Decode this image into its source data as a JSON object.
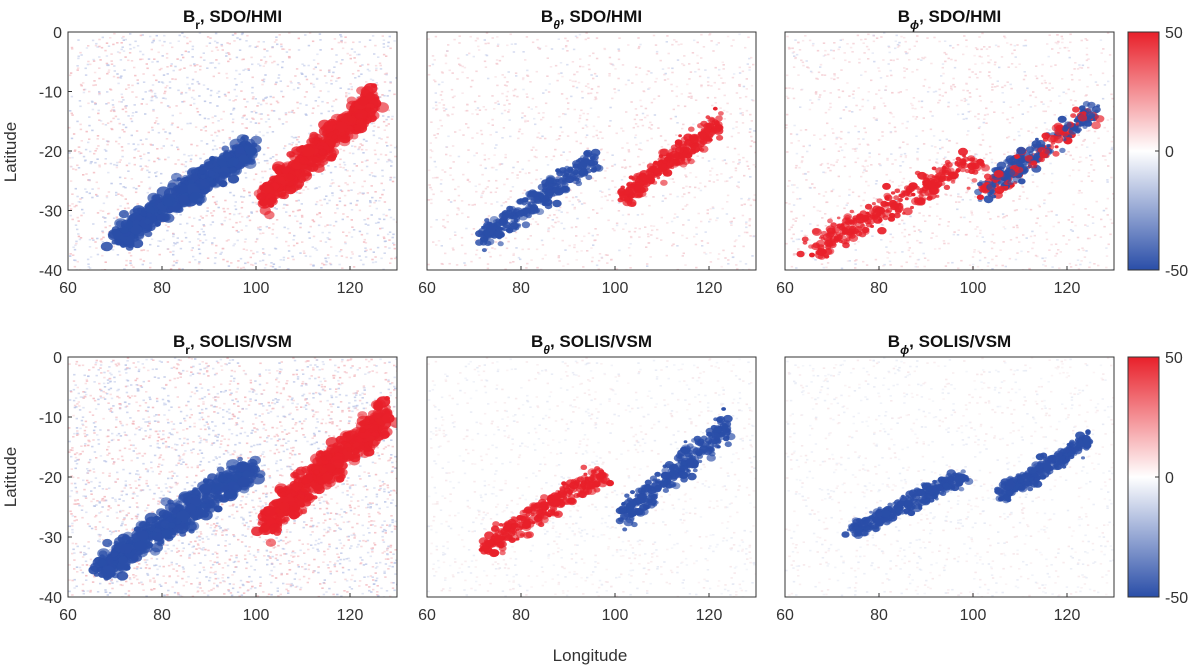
{
  "chart_data": [
    {
      "type": "heatmap",
      "row": 0,
      "col": 0,
      "title_main": "B",
      "title_sub": "r",
      "title_rest": ", SDO/HMI",
      "component": "r",
      "instrument": "SDO/HMI",
      "ylabel": "Latitude",
      "xlabel": "",
      "xlim": [
        60,
        130
      ],
      "ylim": [
        -40,
        0
      ],
      "xticks": [
        60,
        80,
        100,
        120
      ],
      "yticks": [
        0,
        -10,
        -20,
        -30,
        -40
      ],
      "clim": [
        -50,
        50
      ],
      "background_noise": "weak red/blue speckle",
      "regions": [
        {
          "polarity": "negative",
          "lon_range": [
            68,
            102
          ],
          "lat_range": [
            -36,
            -18
          ]
        },
        {
          "polarity": "positive",
          "lon_range": [
            100,
            127
          ],
          "lat_range": [
            -29,
            -10
          ]
        }
      ]
    },
    {
      "type": "heatmap",
      "row": 0,
      "col": 1,
      "title_main": "B",
      "title_sub": "θ",
      "title_rest": ", SDO/HMI",
      "component": "theta",
      "instrument": "SDO/HMI",
      "ylabel": "",
      "xlabel": "",
      "xlim": [
        60,
        130
      ],
      "ylim": [
        -40,
        0
      ],
      "xticks": [
        60,
        80,
        100,
        120
      ],
      "yticks": [],
      "clim": [
        -50,
        50
      ],
      "background_noise": "faint pink",
      "regions": [
        {
          "polarity": "negative",
          "lon_range": [
            70,
            98
          ],
          "lat_range": [
            -36,
            -20
          ]
        },
        {
          "polarity": "positive",
          "lon_range": [
            100,
            124
          ],
          "lat_range": [
            -29,
            -14
          ]
        }
      ]
    },
    {
      "type": "heatmap",
      "row": 0,
      "col": 2,
      "title_main": "B",
      "title_sub": "ϕ",
      "title_rest": ", SDO/HMI",
      "component": "phi",
      "instrument": "SDO/HMI",
      "ylabel": "",
      "xlabel": "",
      "xlim": [
        60,
        130
      ],
      "ylim": [
        -40,
        0
      ],
      "xticks": [
        60,
        80,
        100,
        120
      ],
      "yticks": [],
      "clim": [
        -50,
        50
      ],
      "background_noise": "faint pink",
      "regions": [
        {
          "polarity": "positive",
          "lon_range": [
            62,
            104
          ],
          "lat_range": [
            -38,
            -20
          ]
        },
        {
          "polarity": "mixed",
          "lon_range": [
            100,
            128
          ],
          "lat_range": [
            -28,
            -12
          ]
        }
      ]
    },
    {
      "type": "heatmap",
      "row": 1,
      "col": 0,
      "title_main": "B",
      "title_sub": "r",
      "title_rest": ", SOLIS/VSM",
      "component": "r",
      "instrument": "SOLIS/VSM",
      "ylabel": "Latitude",
      "xlabel": "",
      "xlim": [
        60,
        130
      ],
      "ylim": [
        -40,
        0
      ],
      "xticks": [
        60,
        80,
        100,
        120
      ],
      "yticks": [
        0,
        -10,
        -20,
        -30,
        -40
      ],
      "clim": [
        -50,
        50
      ],
      "background_noise": "stronger red/blue speckle",
      "regions": [
        {
          "polarity": "negative",
          "lon_range": [
            64,
            102
          ],
          "lat_range": [
            -37,
            -17
          ]
        },
        {
          "polarity": "positive",
          "lon_range": [
            100,
            130
          ],
          "lat_range": [
            -29,
            -8
          ]
        }
      ]
    },
    {
      "type": "heatmap",
      "row": 1,
      "col": 1,
      "title_main": "B",
      "title_sub": "θ",
      "title_rest": ", SOLIS/VSM",
      "component": "theta",
      "instrument": "SOLIS/VSM",
      "ylabel": "",
      "xlabel": "Longitude",
      "xlim": [
        60,
        130
      ],
      "ylim": [
        -40,
        0
      ],
      "xticks": [
        60,
        80,
        100,
        120
      ],
      "yticks": [],
      "clim": [
        -50,
        50
      ],
      "background_noise": "near white",
      "regions": [
        {
          "polarity": "positive",
          "lon_range": [
            70,
            100
          ],
          "lat_range": [
            -33,
            -18
          ]
        },
        {
          "polarity": "negative",
          "lon_range": [
            100,
            126
          ],
          "lat_range": [
            -28,
            -10
          ]
        }
      ]
    },
    {
      "type": "heatmap",
      "row": 1,
      "col": 2,
      "title_main": "B",
      "title_sub": "ϕ",
      "title_rest": ", SOLIS/VSM",
      "component": "phi",
      "instrument": "SOLIS/VSM",
      "ylabel": "",
      "xlabel": "",
      "xlim": [
        60,
        130
      ],
      "ylim": [
        -40,
        0
      ],
      "xticks": [
        60,
        80,
        100,
        120
      ],
      "yticks": [],
      "clim": [
        -50,
        50
      ],
      "background_noise": "near white",
      "regions": [
        {
          "polarity": "negative",
          "lon_range": [
            72,
            100
          ],
          "lat_range": [
            -30,
            -19
          ]
        },
        {
          "polarity": "negative",
          "lon_range": [
            104,
            126
          ],
          "lat_range": [
            -24,
            -13
          ]
        }
      ]
    }
  ],
  "colorbar": {
    "ticks": [
      "50",
      "0",
      "-50"
    ],
    "min": -50,
    "max": 50,
    "colors": {
      "max": "#e8202a",
      "mid": "#ffffff",
      "min": "#2a4ea8"
    }
  },
  "axes_labels": {
    "ylabel": "Latitude",
    "xlabel": "Longitude"
  },
  "colors": {
    "positive": "#e8202a",
    "negative": "#2a4ea8",
    "axis": "#333333"
  }
}
